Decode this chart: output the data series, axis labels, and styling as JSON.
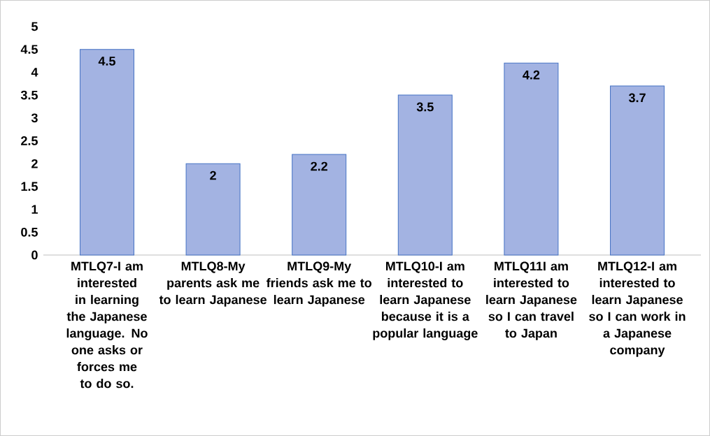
{
  "chart_data": {
    "type": "bar",
    "categories": [
      "MTLQ7-I am interested in learning the Japanese language.  No one asks or forces me to do so.",
      "MTLQ8-My parents ask me to learn Japanese",
      "MTLQ9-My friends ask me to learn Japanese",
      "MTLQ10-I am interested to learn Japanese because it is a popular language",
      "MTLQ11I am interested to learn Japanese so I can travel to Japan",
      "MTLQ12-I am interested to learn Japanese so I can work in a Japanese company"
    ],
    "values": [
      4.5,
      2,
      2.2,
      3.5,
      4.2,
      3.7
    ],
    "color": "#a3b3e2",
    "ylim": [
      0,
      5
    ],
    "yticks": [
      0,
      0.5,
      1,
      1.5,
      2,
      2.5,
      3,
      3.5,
      4,
      4.5,
      5
    ],
    "data_labels": true,
    "grid": false
  }
}
